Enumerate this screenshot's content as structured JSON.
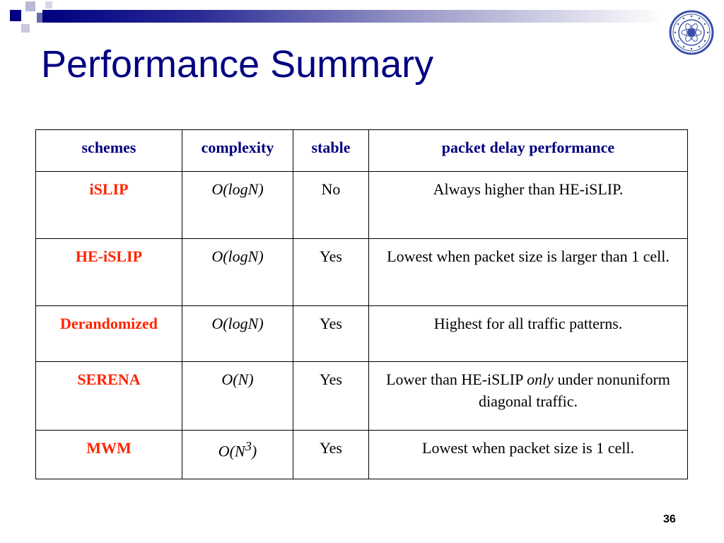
{
  "slide": {
    "title": "Performance Summary",
    "page_number": "36"
  },
  "table": {
    "headers": [
      "schemes",
      "complexity",
      "stable",
      "packet delay performance"
    ],
    "rows": [
      {
        "scheme": "iSLIP",
        "complexity": "O(logN)",
        "stable": "No",
        "performance": "Always higher than HE-iSLIP."
      },
      {
        "scheme": "HE-iSLIP",
        "complexity": "O(logN)",
        "stable": "Yes",
        "performance": "Lowest when packet size is larger than 1 cell."
      },
      {
        "scheme": "Derandomized",
        "complexity": "O(logN)",
        "stable": "Yes",
        "performance": "Highest for all traffic patterns."
      },
      {
        "scheme": "SERENA",
        "complexity": "O(N)",
        "stable": "Yes",
        "performance_pre": "Lower than HE-iSLIP ",
        "performance_em": "only",
        "performance_post": " under nonuniform diagonal traffic."
      },
      {
        "scheme": "MWM",
        "complexity_base": "O(N",
        "complexity_sup": "3",
        "complexity_end": ")",
        "stable": "Yes",
        "performance": "Lowest when packet size is 1 cell."
      }
    ]
  },
  "logo": {
    "icon": "university-seal-icon",
    "color": "#3b4fa8"
  },
  "colors": {
    "title": "#000080",
    "header": "#000080",
    "scheme": "#ff2400"
  }
}
